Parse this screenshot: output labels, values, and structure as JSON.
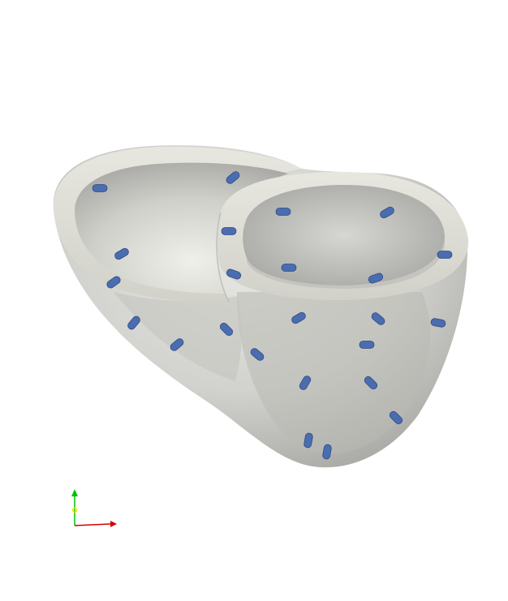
{
  "scene": {
    "background": "#ffffff",
    "colors": {
      "surface": "#cfcfcb",
      "surface_light": "#e4e4df",
      "surface_dark": "#a9a9a5",
      "rim": "#deddd5",
      "marker": "#4a6db0",
      "marker_dark": "#2f4a86",
      "axis_x": "#d40000",
      "axis_y": "#00c000",
      "axis_z": "#e8e800"
    },
    "objects": [
      {
        "name": "left-ventricle",
        "type": "open-cavity"
      },
      {
        "name": "right-ventricle",
        "type": "open-cavity"
      }
    ],
    "markers_icon": "electrode-marker",
    "orientation_icon": "axes-triad-icon"
  }
}
